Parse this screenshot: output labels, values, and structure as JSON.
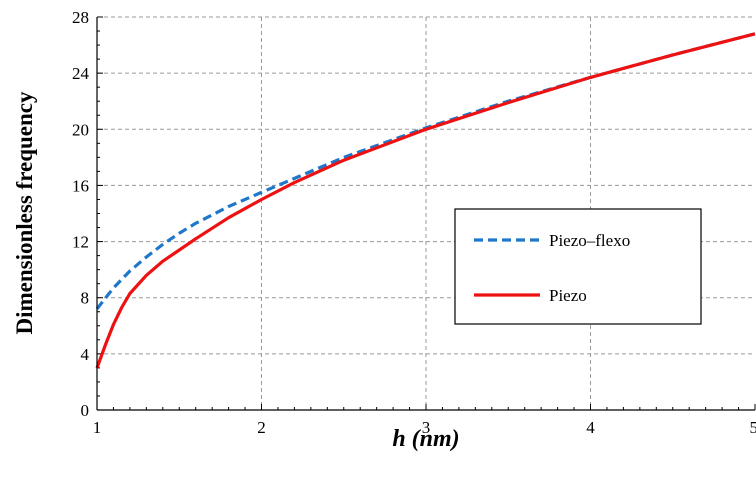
{
  "chart_data": {
    "type": "line",
    "title": "",
    "xlabel_main": "h",
    "xlabel_unit": " (nm)",
    "ylabel": "Dimensionless frequency",
    "xlim": [
      1,
      5
    ],
    "ylim": [
      0,
      28
    ],
    "x_ticks": [
      "1",
      "2",
      "3",
      "4",
      "5"
    ],
    "y_ticks": [
      "0",
      "4",
      "8",
      "12",
      "16",
      "20",
      "24",
      "28"
    ],
    "grid": true,
    "legend_position": "center-right",
    "series": [
      {
        "name": "Piezo–flexo",
        "color": "#1F77C9",
        "style": "dashed",
        "x": [
          1.0,
          1.1,
          1.2,
          1.3,
          1.4,
          1.5,
          1.6,
          1.8,
          2.0,
          2.2,
          2.5,
          3.0,
          3.5,
          4.0,
          4.5,
          5.0
        ],
        "y": [
          7.2,
          8.7,
          9.9,
          10.9,
          11.8,
          12.6,
          13.3,
          14.5,
          15.5,
          16.5,
          18.0,
          20.1,
          22.0,
          23.7,
          25.3,
          26.8
        ]
      },
      {
        "name": "Piezo",
        "color": "#EE1111",
        "style": "solid",
        "x": [
          1.0,
          1.05,
          1.1,
          1.15,
          1.2,
          1.3,
          1.4,
          1.5,
          1.6,
          1.8,
          2.0,
          2.2,
          2.5,
          3.0,
          3.5,
          4.0,
          4.5,
          5.0
        ],
        "y": [
          3.0,
          4.6,
          6.1,
          7.3,
          8.3,
          9.6,
          10.6,
          11.4,
          12.2,
          13.7,
          15.0,
          16.2,
          17.8,
          20.0,
          21.9,
          23.7,
          25.3,
          26.8
        ]
      }
    ]
  }
}
